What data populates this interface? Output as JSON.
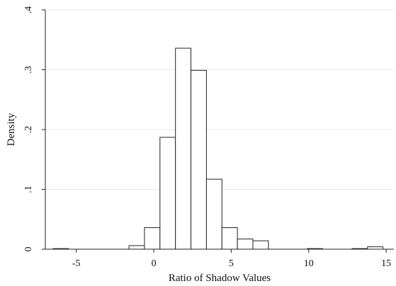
{
  "chart_data": {
    "type": "bar",
    "subtype": "histogram",
    "xlabel": "Ratio of Shadow Values",
    "ylabel": "Density",
    "xlim": [
      -7,
      15.5
    ],
    "ylim": [
      0,
      0.4
    ],
    "x_ticks": [
      -5,
      0,
      5,
      10,
      15
    ],
    "x_tick_labels": [
      "-5",
      "0",
      "5",
      "10",
      "15"
    ],
    "y_ticks": [
      0,
      0.1,
      0.2,
      0.3,
      0.4
    ],
    "y_tick_labels": [
      "0",
      ".1",
      ".2",
      ".3",
      ".4"
    ],
    "grid": "horizontal",
    "bin_width": 1,
    "bins": [
      {
        "x0": -6.5,
        "x1": -5.5,
        "density": 0.001
      },
      {
        "x0": -1.6,
        "x1": -0.6,
        "density": 0.006
      },
      {
        "x0": -0.6,
        "x1": 0.4,
        "density": 0.036
      },
      {
        "x0": 0.4,
        "x1": 1.4,
        "density": 0.187
      },
      {
        "x0": 1.4,
        "x1": 2.4,
        "density": 0.336
      },
      {
        "x0": 2.4,
        "x1": 3.4,
        "density": 0.299
      },
      {
        "x0": 3.4,
        "x1": 4.4,
        "density": 0.117
      },
      {
        "x0": 4.4,
        "x1": 5.4,
        "density": 0.036
      },
      {
        "x0": 5.4,
        "x1": 6.4,
        "density": 0.017
      },
      {
        "x0": 6.4,
        "x1": 7.4,
        "density": 0.014
      },
      {
        "x0": 9.9,
        "x1": 10.9,
        "density": 0.001
      },
      {
        "x0": 12.8,
        "x1": 13.8,
        "density": 0.001
      },
      {
        "x0": 13.8,
        "x1": 14.8,
        "density": 0.004
      }
    ]
  }
}
